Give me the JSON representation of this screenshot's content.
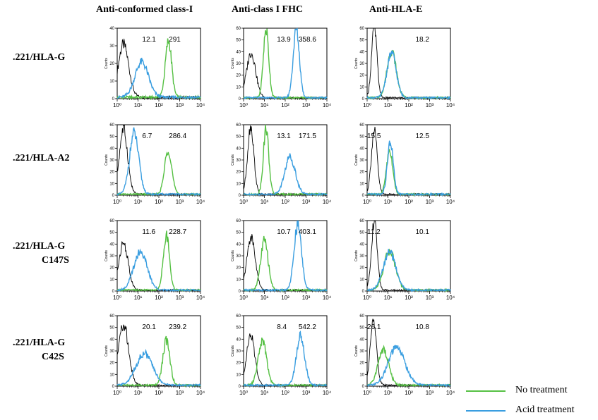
{
  "chart_data": {
    "type": "line",
    "description_free": true,
    "x_axis": {
      "scale": "log",
      "range": [
        1,
        10000
      ],
      "ticks": [
        "10⁰",
        "10¹",
        "10²",
        "10³",
        "10⁴"
      ]
    },
    "y_axis_label": "Counts",
    "column_headers": [
      "Anti-conformed class-I",
      "Anti-class I FHC",
      "Anti-HLA-E"
    ],
    "row_labels": [
      [
        ".221/HLA-G"
      ],
      [
        ".221/HLA-A2"
      ],
      [
        ".221/HLA-G",
        "C147S"
      ],
      [
        ".221/HLA-G",
        "C42S"
      ]
    ],
    "legend": [
      {
        "name": "No treatment",
        "color": "#55c043"
      },
      {
        "name": "Acid treatment",
        "color": "#3a9ee0"
      }
    ],
    "control_color": "#000000",
    "panels": [
      [
        {
          "ymax": 40,
          "yticks": [
            0,
            10,
            20,
            30,
            40
          ],
          "values": [
            "12.1",
            "291"
          ],
          "black": {
            "c": 2.0,
            "w": 0.25,
            "h": 30
          },
          "green": {
            "c": 290,
            "w": 0.15,
            "h": 32
          },
          "blue": {
            "c": 15,
            "w": 0.32,
            "h": 20
          }
        },
        {
          "ymax": 60,
          "yticks": [
            0,
            10,
            20,
            30,
            40,
            50,
            60
          ],
          "values": [
            "13.9",
            "358.6"
          ],
          "black": {
            "c": 2.3,
            "w": 0.22,
            "h": 38
          },
          "green": {
            "c": 12,
            "w": 0.13,
            "h": 58
          },
          "blue": {
            "c": 340,
            "w": 0.15,
            "h": 58
          }
        },
        {
          "ymax": 60,
          "yticks": [
            0,
            10,
            20,
            30,
            40,
            50,
            60
          ],
          "values": [
            "18.2"
          ],
          "black": {
            "c": 2.2,
            "w": 0.13,
            "h": 60
          },
          "green": {
            "c": 15,
            "w": 0.22,
            "h": 40
          },
          "blue": {
            "c": 15,
            "w": 0.22,
            "h": 38
          }
        }
      ],
      [
        {
          "ymax": 60,
          "yticks": [
            0,
            10,
            20,
            30,
            40,
            50,
            60
          ],
          "values": [
            "6.7",
            "286.4"
          ],
          "black": {
            "c": 2.0,
            "w": 0.2,
            "h": 55
          },
          "green": {
            "c": 280,
            "w": 0.17,
            "h": 38
          },
          "blue": {
            "c": 6.5,
            "w": 0.22,
            "h": 52
          }
        },
        {
          "ymax": 60,
          "yticks": [
            0,
            10,
            20,
            30,
            40,
            50,
            60
          ],
          "values": [
            "13.1",
            "171.5"
          ],
          "black": {
            "c": 2.2,
            "w": 0.15,
            "h": 58
          },
          "green": {
            "c": 12,
            "w": 0.13,
            "h": 56
          },
          "blue": {
            "c": 170,
            "w": 0.25,
            "h": 32
          }
        },
        {
          "ymax": 60,
          "yticks": [
            0,
            10,
            20,
            30,
            40,
            50,
            60
          ],
          "values": [
            "12.5",
            "15.5"
          ],
          "black": {
            "c": 2.2,
            "w": 0.14,
            "h": 54
          },
          "green": {
            "c": 12,
            "w": 0.15,
            "h": 38
          },
          "blue": {
            "c": 13,
            "w": 0.14,
            "h": 44
          }
        }
      ],
      [
        {
          "ymax": 60,
          "yticks": [
            0,
            10,
            20,
            30,
            40,
            50,
            60
          ],
          "values": [
            "11.6",
            "228.7"
          ],
          "black": {
            "c": 2.0,
            "w": 0.22,
            "h": 40
          },
          "green": {
            "c": 230,
            "w": 0.15,
            "h": 46
          },
          "blue": {
            "c": 13,
            "w": 0.32,
            "h": 33
          }
        },
        {
          "ymax": 60,
          "yticks": [
            0,
            10,
            20,
            30,
            40,
            50,
            60
          ],
          "values": [
            "10.7",
            "403.1"
          ],
          "black": {
            "c": 2.3,
            "w": 0.2,
            "h": 45
          },
          "green": {
            "c": 10,
            "w": 0.18,
            "h": 42
          },
          "blue": {
            "c": 400,
            "w": 0.18,
            "h": 55
          }
        },
        {
          "ymax": 60,
          "yticks": [
            0,
            10,
            20,
            30,
            40,
            50,
            60
          ],
          "values": [
            "10.1",
            "11.2"
          ],
          "black": {
            "c": 2.2,
            "w": 0.14,
            "h": 58
          },
          "green": {
            "c": 12,
            "w": 0.28,
            "h": 33
          },
          "blue": {
            "c": 12,
            "w": 0.3,
            "h": 32
          }
        }
      ],
      [
        {
          "ymax": 60,
          "yticks": [
            0,
            10,
            20,
            30,
            40,
            50,
            60
          ],
          "values": [
            "20.1",
            "239.2"
          ],
          "black": {
            "c": 2.0,
            "w": 0.24,
            "h": 52
          },
          "green": {
            "c": 230,
            "w": 0.17,
            "h": 38
          },
          "blue": {
            "c": 20,
            "w": 0.4,
            "h": 27
          }
        },
        {
          "ymax": 60,
          "yticks": [
            0,
            10,
            20,
            30,
            40,
            50,
            60
          ],
          "values": [
            "8.4",
            "542.2"
          ],
          "black": {
            "c": 2.2,
            "w": 0.2,
            "h": 42
          },
          "green": {
            "c": 8,
            "w": 0.2,
            "h": 38
          },
          "blue": {
            "c": 540,
            "w": 0.2,
            "h": 42
          }
        },
        {
          "ymax": 60,
          "yticks": [
            0,
            10,
            20,
            30,
            40,
            50,
            60
          ],
          "values": [
            "10.8",
            "26.1"
          ],
          "black": {
            "c": 2.0,
            "w": 0.15,
            "h": 55
          },
          "green": {
            "c": 6,
            "w": 0.25,
            "h": 30
          },
          "blue": {
            "c": 26,
            "w": 0.4,
            "h": 32
          }
        }
      ]
    ]
  }
}
